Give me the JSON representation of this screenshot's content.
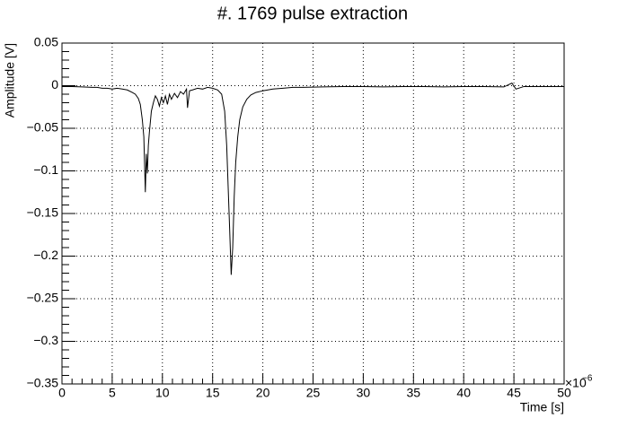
{
  "chart_data": {
    "type": "line",
    "title": "#. 1769 pulse extraction",
    "x_label": "Time [s]",
    "y_label": "Amplitude [V]",
    "x_multiplier": "×10",
    "x_multiplier_exponent": "−6",
    "xlim": [
      0,
      50
    ],
    "ylim": [
      -0.35,
      0.05
    ],
    "xticks": [
      0,
      5,
      10,
      15,
      20,
      25,
      30,
      35,
      40,
      45,
      50
    ],
    "yticks": [
      {
        "value": -0.35,
        "label": "−0.35"
      },
      {
        "value": -0.3,
        "label": "−0.3"
      },
      {
        "value": -0.25,
        "label": "−0.25"
      },
      {
        "value": -0.2,
        "label": "−0.2"
      },
      {
        "value": -0.15,
        "label": "−0.15"
      },
      {
        "value": -0.1,
        "label": "−0.1"
      },
      {
        "value": -0.05,
        "label": "−0.05"
      },
      0,
      0.05
    ],
    "grid": true,
    "series": [
      {
        "color": "#000000",
        "x": [
          0,
          1,
          2,
          3,
          3.5,
          4,
          4.5,
          5,
          5.5,
          6,
          6.5,
          7,
          7.3,
          7.6,
          7.8,
          8.0,
          8.15,
          8.3,
          8.4,
          8.5,
          8.6,
          8.7,
          8.9,
          9.1,
          9.3,
          9.5,
          9.7,
          9.9,
          10.1,
          10.3,
          10.5,
          10.7,
          10.9,
          11.2,
          11.5,
          11.8,
          12.1,
          12.4,
          12.5,
          12.7,
          13.0,
          13.5,
          14.0,
          14.5,
          15.0,
          15.5,
          15.9,
          16.2,
          16.4,
          16.55,
          16.7,
          16.85,
          17.0,
          17.15,
          17.3,
          17.5,
          17.7,
          18.0,
          18.4,
          18.8,
          19.3,
          20,
          21,
          22,
          23,
          24,
          26,
          28,
          30,
          32,
          34,
          36,
          38,
          40,
          42,
          44,
          44.8,
          45.2,
          46,
          48,
          50
        ],
        "values": [
          -0.001,
          -0.001,
          -0.0015,
          -0.002,
          -0.002,
          -0.003,
          -0.003,
          -0.004,
          -0.003,
          -0.004,
          -0.005,
          -0.008,
          -0.01,
          -0.015,
          -0.022,
          -0.04,
          -0.06,
          -0.125,
          -0.08,
          -0.103,
          -0.07,
          -0.055,
          -0.03,
          -0.02,
          -0.012,
          -0.016,
          -0.024,
          -0.014,
          -0.02,
          -0.012,
          -0.022,
          -0.01,
          -0.016,
          -0.009,
          -0.014,
          -0.007,
          -0.01,
          -0.004,
          -0.026,
          -0.006,
          -0.005,
          -0.003,
          -0.004,
          -0.002,
          -0.003,
          -0.005,
          -0.01,
          -0.03,
          -0.07,
          -0.12,
          -0.17,
          -0.222,
          -0.19,
          -0.13,
          -0.09,
          -0.06,
          -0.04,
          -0.025,
          -0.016,
          -0.011,
          -0.008,
          -0.006,
          -0.004,
          -0.003,
          -0.002,
          -0.002,
          -0.0015,
          -0.001,
          -0.001,
          -0.0015,
          -0.001,
          -0.001,
          -0.0015,
          -0.001,
          -0.001,
          -0.0015,
          0.003,
          -0.004,
          -0.001,
          -0.001,
          -0.001
        ]
      }
    ]
  }
}
